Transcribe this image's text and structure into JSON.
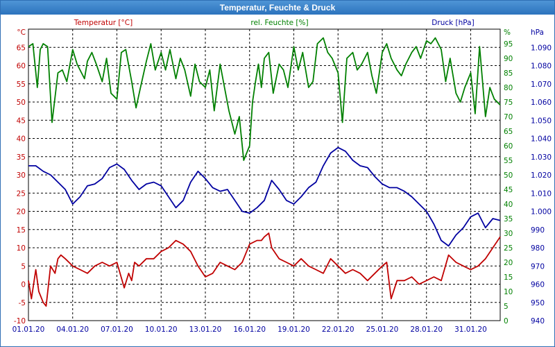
{
  "window": {
    "title": "Temperatur, Feuchte & Druck"
  },
  "chart_data": {
    "type": "line",
    "title": "Temperatur, Feuchte & Druck",
    "grid": true,
    "x_tick_labels": [
      "01.01.20",
      "04.01.20",
      "07.01.20",
      "10.01.20",
      "13.01.20",
      "16.01.20",
      "19.01.20",
      "22.01.20",
      "25.01.20",
      "28.01.20",
      "31.01.20"
    ],
    "x_range_days": [
      0,
      32
    ],
    "axes": {
      "temperature": {
        "unit_label": "°C",
        "title": "Temperatur [°C]",
        "range": [
          -10,
          70
        ],
        "ticks": [
          "-10",
          "-5",
          "0",
          "5",
          "10",
          "15",
          "20",
          "25",
          "30",
          "35",
          "40",
          "45",
          "50",
          "55",
          "60",
          "65"
        ],
        "color": "#c00000"
      },
      "humidity": {
        "unit_label": "%",
        "title": "rel. Feuchte [%]",
        "range": [
          0,
          100
        ],
        "ticks": [
          "0",
          "5",
          "10",
          "15",
          "20",
          "25",
          "30",
          "35",
          "40",
          "45",
          "50",
          "55",
          "60",
          "65",
          "70",
          "75",
          "80",
          "85",
          "90",
          "95"
        ],
        "color": "#008000"
      },
      "pressure": {
        "unit_label": "hPa",
        "title": "Druck [hPa]",
        "range": [
          940,
          1100
        ],
        "ticks": [
          "940",
          "950",
          "960",
          "970",
          "980",
          "990",
          "1.000",
          "1.010",
          "1.020",
          "1.030",
          "1.040",
          "1.050",
          "1.060",
          "1.070",
          "1.080",
          "1.090"
        ],
        "color": "#0000a0"
      }
    },
    "series": [
      {
        "name": "Temperatur [°C]",
        "axis": "temperature",
        "color": "#c00000",
        "x": [
          0,
          0.2,
          0.5,
          0.7,
          1.0,
          1.2,
          1.5,
          1.8,
          2.0,
          2.2,
          2.5,
          3.0,
          3.5,
          4.0,
          4.5,
          5.0,
          5.5,
          6.0,
          6.5,
          6.8,
          7.0,
          7.2,
          7.5,
          8.0,
          8.5,
          9.0,
          9.5,
          10.0,
          10.5,
          11.0,
          11.5,
          12.0,
          12.5,
          13.0,
          13.5,
          14.0,
          14.5,
          15.0,
          15.5,
          15.8,
          16.0,
          16.3,
          16.5,
          17.0,
          17.5,
          18.0,
          18.5,
          19.0,
          19.5,
          20.0,
          20.5,
          21.0,
          21.5,
          22.0,
          22.5,
          23.0,
          23.5,
          24.0,
          24.3,
          24.6,
          25.0,
          25.5,
          26.0,
          26.5,
          27.0,
          27.5,
          28.0,
          28.5,
          29.0,
          29.5,
          30.0,
          30.5,
          31.0,
          31.5,
          32.0
        ],
        "y": [
          1,
          -4,
          4,
          -2,
          -5,
          -6,
          5,
          3,
          7,
          8,
          7,
          5,
          4,
          3,
          5,
          6,
          5,
          6,
          -1,
          3,
          1,
          6,
          5,
          7,
          7,
          9,
          10,
          12,
          11,
          9,
          5,
          2,
          3,
          6,
          5,
          4,
          6,
          11,
          12,
          12,
          13,
          14,
          10,
          7,
          6,
          5,
          7,
          5,
          4,
          3,
          7,
          5,
          3,
          4,
          3,
          1,
          3,
          5,
          6,
          -4,
          1,
          1,
          2,
          0,
          1,
          2,
          1,
          8,
          6,
          5,
          4,
          5,
          7,
          10,
          13
        ]
      },
      {
        "name": "rel. Feuchte [%]",
        "axis": "humidity",
        "color": "#008000",
        "x": [
          0,
          0.3,
          0.6,
          0.8,
          1.0,
          1.3,
          1.6,
          2.0,
          2.3,
          2.6,
          3.0,
          3.3,
          3.6,
          3.8,
          4.0,
          4.3,
          4.6,
          5.0,
          5.3,
          5.6,
          6.0,
          6.3,
          6.6,
          7.0,
          7.3,
          7.6,
          8.0,
          8.3,
          8.6,
          9.0,
          9.3,
          9.6,
          10.0,
          10.3,
          10.6,
          11.0,
          11.3,
          11.6,
          12.0,
          12.3,
          12.6,
          13.0,
          13.3,
          13.6,
          14.0,
          14.3,
          14.6,
          15.0,
          15.2,
          15.4,
          15.6,
          15.8,
          16.0,
          16.3,
          16.6,
          17.0,
          17.3,
          17.6,
          18.0,
          18.3,
          18.6,
          19.0,
          19.3,
          19.6,
          20.0,
          20.3,
          20.6,
          21.0,
          21.3,
          21.6,
          22.0,
          22.3,
          22.6,
          23.0,
          23.3,
          23.6,
          24.0,
          24.3,
          24.6,
          25.0,
          25.3,
          25.6,
          26.0,
          26.3,
          26.6,
          27.0,
          27.3,
          27.6,
          28.0,
          28.3,
          28.6,
          29.0,
          29.3,
          29.6,
          30.0,
          30.3,
          30.6,
          31.0,
          31.3,
          31.6,
          32.0
        ],
        "y": [
          94,
          95,
          80,
          93,
          95,
          94,
          68,
          85,
          86,
          82,
          93,
          88,
          85,
          83,
          89,
          92,
          88,
          82,
          90,
          78,
          76,
          92,
          93,
          82,
          73,
          80,
          89,
          95,
          86,
          92,
          86,
          93,
          83,
          90,
          86,
          77,
          88,
          82,
          80,
          86,
          72,
          88,
          80,
          72,
          64,
          70,
          55,
          60,
          75,
          82,
          88,
          80,
          90,
          92,
          78,
          88,
          86,
          80,
          94,
          86,
          92,
          80,
          82,
          95,
          97,
          92,
          90,
          85,
          68,
          90,
          92,
          86,
          88,
          92,
          84,
          78,
          92,
          95,
          90,
          86,
          84,
          88,
          92,
          94,
          90,
          96,
          95,
          97,
          93,
          82,
          90,
          78,
          75,
          80,
          85,
          71,
          94,
          70,
          80,
          76,
          74
        ]
      },
      {
        "name": "Druck [hPa]",
        "axis": "pressure",
        "color": "#0000a0",
        "x": [
          0,
          0.5,
          1.0,
          1.5,
          2.0,
          2.5,
          3.0,
          3.5,
          4.0,
          4.5,
          5.0,
          5.5,
          6.0,
          6.5,
          7.0,
          7.5,
          8.0,
          8.5,
          9.0,
          9.5,
          10.0,
          10.5,
          11.0,
          11.5,
          12.0,
          12.5,
          13.0,
          13.5,
          14.0,
          14.5,
          15.0,
          15.5,
          16.0,
          16.5,
          17.0,
          17.5,
          18.0,
          18.5,
          19.0,
          19.5,
          20.0,
          20.5,
          21.0,
          21.5,
          22.0,
          22.5,
          23.0,
          23.5,
          24.0,
          24.5,
          25.0,
          25.5,
          26.0,
          26.5,
          27.0,
          27.5,
          28.0,
          28.5,
          29.0,
          29.5,
          30.0,
          30.5,
          31.0,
          31.5,
          32.0
        ],
        "y": [
          1025,
          1025,
          1022,
          1020,
          1016,
          1012,
          1004,
          1008,
          1014,
          1015,
          1018,
          1024,
          1026,
          1023,
          1017,
          1012,
          1015,
          1016,
          1014,
          1008,
          1002,
          1006,
          1016,
          1022,
          1018,
          1013,
          1011,
          1012,
          1006,
          1000,
          999,
          1002,
          1006,
          1017,
          1012,
          1006,
          1004,
          1008,
          1013,
          1016,
          1025,
          1032,
          1035,
          1033,
          1028,
          1025,
          1024,
          1019,
          1015,
          1013,
          1013,
          1011,
          1008,
          1004,
          1000,
          993,
          984,
          981,
          987,
          991,
          997,
          999,
          991,
          996,
          995
        ]
      }
    ]
  }
}
